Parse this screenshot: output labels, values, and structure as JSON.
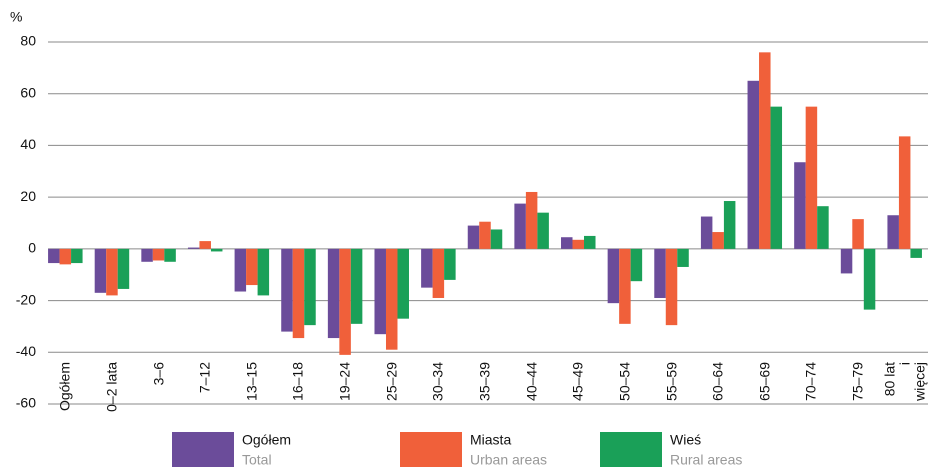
{
  "chart_data": {
    "type": "bar",
    "y_label": "%",
    "categories": [
      "Ogółem",
      "0–2 lata",
      "3–6",
      "7–12",
      "13–15",
      "16–18",
      "19–24",
      "25–29",
      "30–34",
      "35–39",
      "40–44",
      "45–49",
      "50–54",
      "55–59",
      "60–64",
      "65–69",
      "70–74",
      "75–79",
      "80 lat\ni więcej"
    ],
    "series": [
      {
        "name": "Ogółem",
        "name_en": "Total",
        "color": "#6b4c9a",
        "values": [
          -5.5,
          -17,
          -5,
          0.5,
          -16.5,
          -32,
          -34.5,
          -33,
          -15,
          9,
          17.5,
          4.5,
          -21,
          -19,
          12.5,
          65,
          33.5,
          -9.5,
          13
        ]
      },
      {
        "name": "Miasta",
        "name_en": "Urban areas",
        "color": "#f0603a",
        "values": [
          -6,
          -18,
          -4.5,
          3,
          -14,
          -34.5,
          -41,
          -39,
          -19,
          10.5,
          22,
          3.5,
          -29,
          -29.5,
          6.5,
          76,
          55,
          11.5,
          43.5
        ]
      },
      {
        "name": "Wieś",
        "name_en": "Rural areas",
        "color": "#1aa058",
        "values": [
          -5.5,
          -15.5,
          -5,
          -1,
          -18,
          -29.5,
          -29,
          -27,
          -12,
          7.5,
          14,
          5,
          -12.5,
          -7,
          18.5,
          55,
          16.5,
          -23.5,
          -3.5
        ]
      }
    ],
    "ylim": [
      -60,
      80
    ],
    "yticks": [
      -60,
      -40,
      -20,
      0,
      20,
      40,
      60,
      80
    ],
    "grid": true,
    "legend": "bottom"
  }
}
